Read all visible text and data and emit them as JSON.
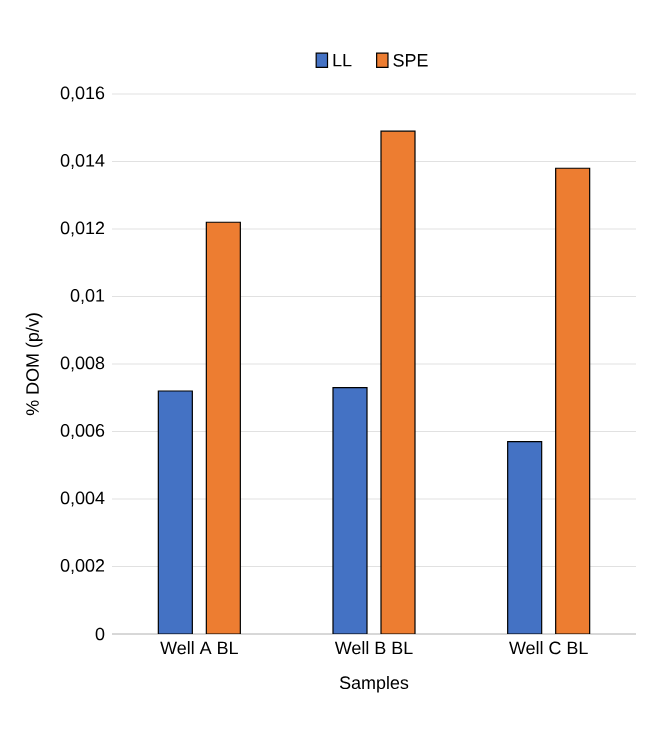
{
  "chart_data": {
    "type": "bar",
    "xlabel": "Samples",
    "ylabel": "% DOM (p/v)",
    "categories": [
      "Well A BL",
      "Well B BL",
      "Well C BL"
    ],
    "series": [
      {
        "name": "LL",
        "color": "#4472c4",
        "values": [
          0.0072,
          0.0073,
          0.0057
        ]
      },
      {
        "name": "SPE",
        "color": "#ed7d31",
        "values": [
          0.0122,
          0.0149,
          0.0138
        ]
      }
    ],
    "ylim": [
      0,
      0.016
    ],
    "yticks": [
      {
        "value": 0,
        "label": "0"
      },
      {
        "value": 0.002,
        "label": "0,002"
      },
      {
        "value": 0.004,
        "label": "0,004"
      },
      {
        "value": 0.006,
        "label": "0,006"
      },
      {
        "value": 0.008,
        "label": "0,008"
      },
      {
        "value": 0.01,
        "label": "0,01"
      },
      {
        "value": 0.012,
        "label": "0,012"
      },
      {
        "value": 0.014,
        "label": "0,014"
      },
      {
        "value": 0.016,
        "label": "0,016"
      }
    ],
    "grid": "y",
    "legend": "top"
  }
}
